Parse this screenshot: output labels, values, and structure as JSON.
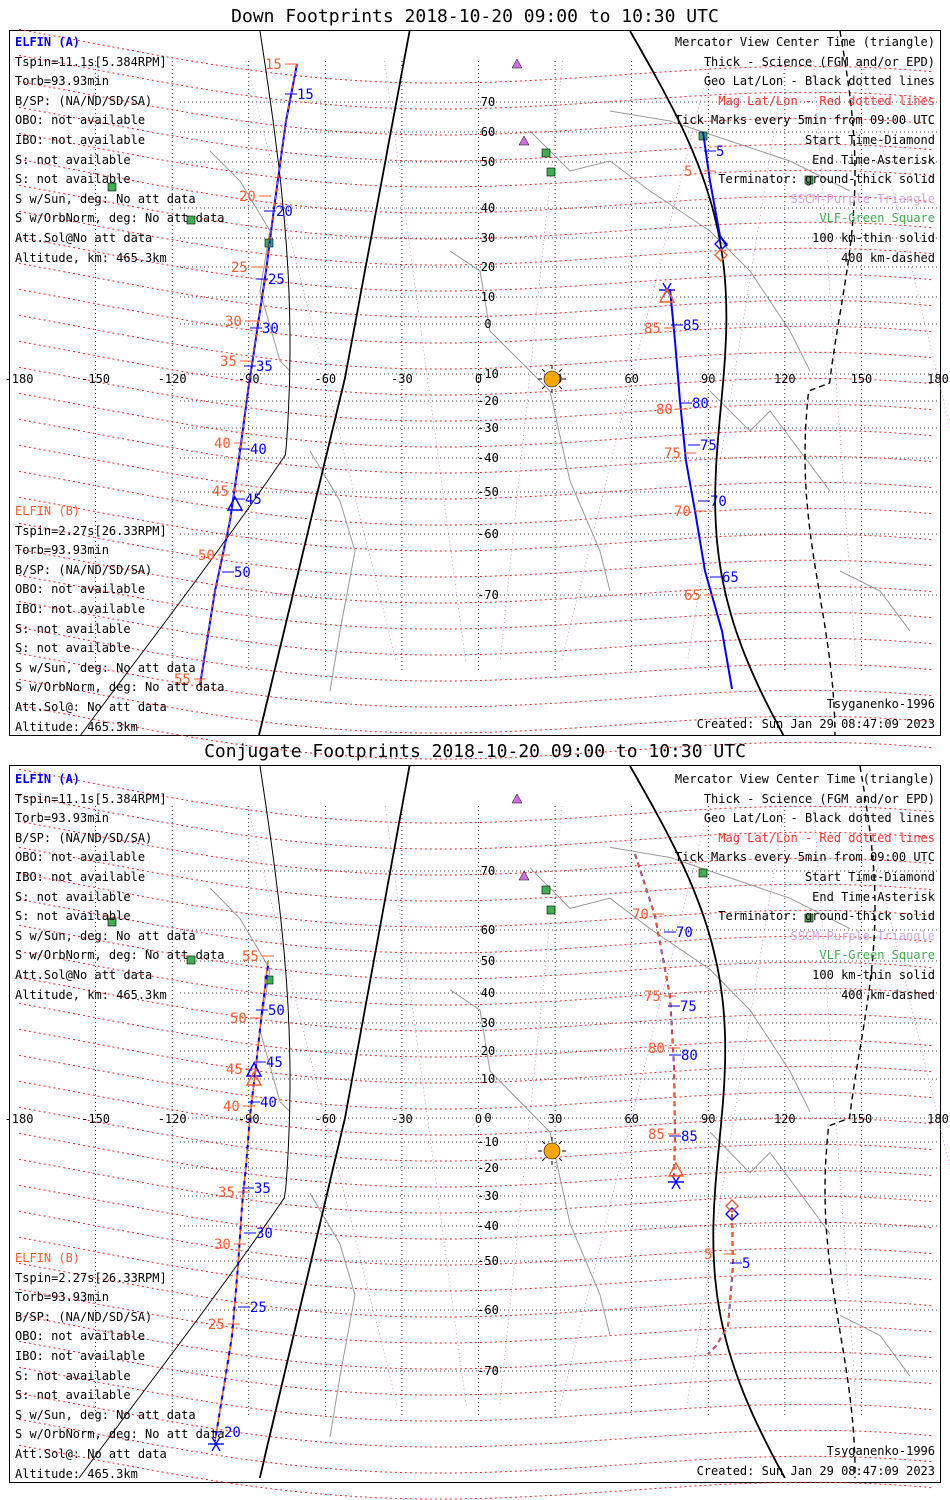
{
  "panels": [
    {
      "title": "Down Footprints 2018-10-20 09:00 to 10:30 UTC",
      "elfin_a": [
        "ELFIN (A)",
        "Tspin=11.1s[5.384RPM]",
        "Torb=93.93min",
        "B/SP: (NA/ND/SD/SA)",
        "OBO: not available",
        "IBO: not available",
        "S: not available",
        "S: not available",
        "S w/Sun, deg: No att data",
        "S w/OrbNorm, deg: No att data",
        "Att.Sol@No att data",
        "Altitude, km: 465.3km"
      ],
      "elfin_b": [
        "ELFIN (B)",
        "Tspin=2.27s[26.33RPM]",
        "Torb=93.93min",
        "B/SP: (NA/ND/SD/SA)",
        "OBO: not available",
        "IBO: not available",
        "S: not available",
        "S: not available",
        "S w/Sun, deg: No att data",
        "S w/OrbNorm, deg: No att data",
        "Att.Sol@: No att data",
        "Altitude: 465.3km"
      ],
      "legend": [
        "Mercator View Center Time (triangle)",
        "Thick - Science (FGM and/or EPD)",
        "Geo Lat/Lon - Black dotted lines",
        "Mag Lat/Lon - Red dotted lines",
        "Tick Marks every 5min from 09:00 UTC",
        "Start Time-Diamond",
        "End Time-Asterisk",
        "Terminator: ground-thick solid",
        "SSCM-Purple Triangle",
        "VLF-Green Square",
        "100 km-thin solid",
        "400 km-dashed"
      ],
      "model": "Tsyganenko-1996",
      "created": "Created: Sun Jan 29 08:47:09 2023",
      "track_a_labels": [
        "15",
        "20",
        "25",
        "30",
        "35",
        "40",
        "45",
        "50"
      ],
      "track_b_labels": [
        "15",
        "20",
        "25",
        "30",
        "35",
        "40",
        "45",
        "50",
        "55"
      ],
      "east_a_labels": [
        "5",
        "85",
        "80",
        "75",
        "70",
        "65"
      ],
      "east_b_labels": [
        "5",
        "85",
        "80",
        "75",
        "70",
        "65"
      ]
    },
    {
      "title": "Conjugate Footprints 2018-10-20 09:00 to 10:30 UTC",
      "elfin_a": [
        "ELFIN (A)",
        "Tspin=11.1s[5.384RPM]",
        "Torb=93.93min",
        "B/SP: (NA/ND/SD/SA)",
        "OBO: not available",
        "IBO: not available",
        "S: not available",
        "S: not available",
        "S w/Sun, deg: No att data",
        "S w/OrbNorm, deg: No att data",
        "Att.Sol@No att data",
        "Altitude, km: 465.3km"
      ],
      "elfin_b": [
        "ELFIN (B)",
        "Tspin=2.27s[26.33RPM]",
        "Torb=93.93min",
        "B/SP: (NA/ND/SD/SA)",
        "OBO: not available",
        "IBO: not available",
        "S: not available",
        "S: not available",
        "S w/Sun, deg: No att data",
        "S w/OrbNorm, deg: No att data",
        "Att.Sol@: No att data",
        "Altitude: 465.3km"
      ],
      "legend": [
        "Mercator View Center Time (triangle)",
        "Thick - Science (FGM and/or EPD)",
        "Geo Lat/Lon - Black dotted lines",
        "Mag Lat/Lon - Red dotted lines",
        "Tick Marks every 5min from 09:00 UTC",
        "Start Time-Diamond",
        "End Time-Asterisk",
        "Terminator: ground-thick solid",
        "SSCM-Purple Triangle",
        "VLF-Green Square",
        "100 km-thin solid",
        "400 km-dashed"
      ],
      "model": "Tsyganenko-1996",
      "created": "Created: Sun Jan 29 08:47:09 2023",
      "track_a_labels": [
        "50",
        "45",
        "40",
        "35",
        "30",
        "25",
        "20"
      ],
      "track_b_labels": [
        "55",
        "50",
        "45",
        "40",
        "35",
        "30",
        "25"
      ],
      "east_a_labels": [
        "70",
        "75",
        "80",
        "85",
        "5"
      ],
      "east_b_labels": [
        "70",
        "75",
        "80",
        "85",
        "5"
      ]
    }
  ],
  "axis": {
    "lon_ticks": [
      "-180",
      "-150",
      "-120",
      "-90",
      "-60",
      "-30",
      "0",
      "30",
      "60",
      "90",
      "120",
      "150",
      "180"
    ],
    "lat_ticks": [
      "70",
      "60",
      "50",
      "40",
      "30",
      "20",
      "10",
      "0",
      "-10",
      "-20",
      "-30",
      "-40",
      "-50",
      "-60",
      "-70"
    ]
  },
  "colors": {
    "elfin_a": "#0000ff",
    "elfin_b": "#ff5a2a",
    "mag_grid": "#ff0000",
    "geo_grid": "#000000",
    "sun": "#ffa500",
    "sscm": "#d070e0",
    "vlf": "#2a9a3a"
  }
}
